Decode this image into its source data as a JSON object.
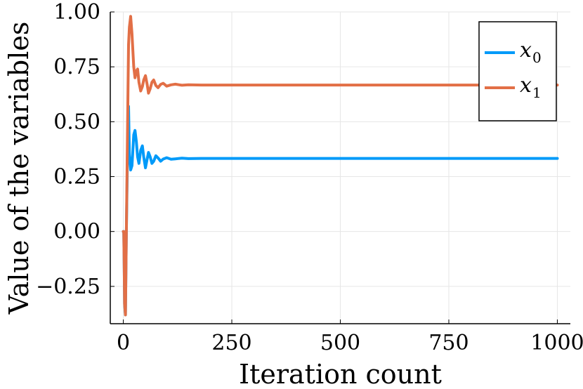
{
  "chart_data": {
    "type": "line",
    "title": "",
    "xlabel": "Iteration count",
    "ylabel": "Value of the variables",
    "xlim": [
      -30,
      1030
    ],
    "ylim": [
      -0.42,
      1.0
    ],
    "xticks": [
      0,
      250,
      500,
      750,
      1000
    ],
    "xtick_labels": [
      "0",
      "250",
      "500",
      "750",
      "1000"
    ],
    "yticks": [
      -0.25,
      0.0,
      0.25,
      0.5,
      0.75,
      1.0
    ],
    "ytick_labels": [
      "−0.25",
      "0.00",
      "0.25",
      "0.50",
      "0.75",
      "1.00"
    ],
    "grid": true,
    "legend_position": "top-right",
    "series": [
      {
        "name": "x",
        "subscript": "0",
        "color": "#009AF9",
        "x": [
          0,
          1,
          2,
          3,
          5,
          7,
          10,
          12,
          14,
          17,
          20,
          24,
          27,
          30,
          33,
          36,
          40,
          44,
          47,
          51,
          55,
          58,
          62,
          66,
          70,
          75,
          80,
          86,
          92,
          100,
          110,
          120,
          135,
          150,
          180,
          250,
          500,
          750,
          1000
        ],
        "y": [
          0.0,
          0.0,
          -0.15,
          -0.33,
          -0.38,
          0.0,
          0.4,
          0.57,
          0.35,
          0.28,
          0.3,
          0.44,
          0.46,
          0.41,
          0.34,
          0.31,
          0.37,
          0.39,
          0.34,
          0.29,
          0.33,
          0.36,
          0.34,
          0.31,
          0.32,
          0.345,
          0.335,
          0.32,
          0.33,
          0.336,
          0.329,
          0.331,
          0.334,
          0.332,
          0.333,
          0.333,
          0.333,
          0.333,
          0.333
        ]
      },
      {
        "name": "x",
        "subscript": "1",
        "color": "#E26F46",
        "x": [
          0,
          1,
          2,
          3,
          5,
          7,
          10,
          12,
          14,
          17,
          20,
          24,
          27,
          30,
          33,
          36,
          40,
          44,
          47,
          51,
          55,
          58,
          62,
          66,
          70,
          75,
          80,
          86,
          92,
          100,
          110,
          120,
          135,
          150,
          180,
          250,
          500,
          750,
          1000
        ],
        "y": [
          0.0,
          0.0,
          -0.15,
          -0.33,
          -0.38,
          0.0,
          0.5,
          0.85,
          0.93,
          0.98,
          0.9,
          0.75,
          0.7,
          0.73,
          0.74,
          0.68,
          0.64,
          0.66,
          0.69,
          0.71,
          0.67,
          0.63,
          0.65,
          0.68,
          0.69,
          0.665,
          0.655,
          0.67,
          0.675,
          0.662,
          0.668,
          0.671,
          0.666,
          0.668,
          0.667,
          0.667,
          0.667,
          0.667,
          0.667
        ]
      }
    ]
  }
}
